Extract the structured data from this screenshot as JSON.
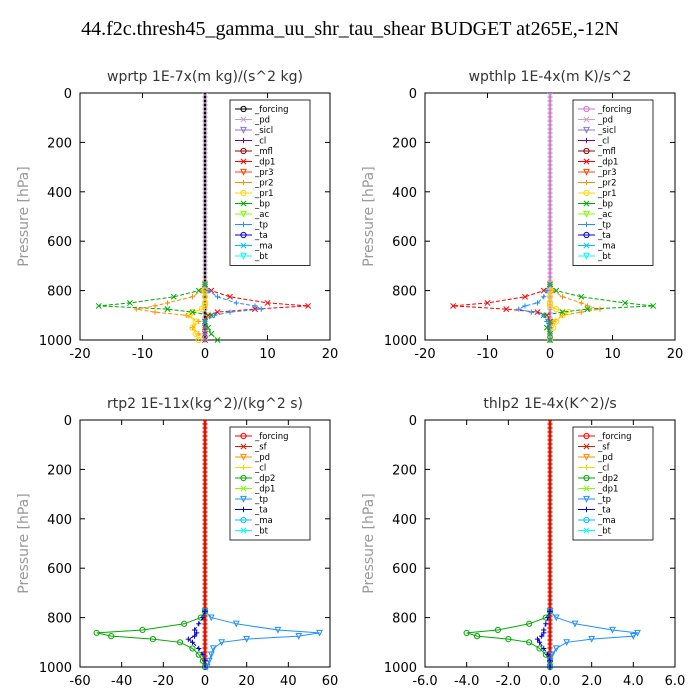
{
  "page": {
    "title": "44.f2c.thresh45_gamma_uu_shr_tau_shear  BUDGET at265E,-12N"
  },
  "chart_data": [
    {
      "type": "line",
      "title": "wprtp   1E-7x(m kg)/(s^2 kg)",
      "ylabel": "Pressure [hPa]",
      "xlabel": "",
      "xlim": [
        -20,
        20
      ],
      "ylim": [
        1000,
        0
      ],
      "xticks": [
        "-20",
        "-10",
        "0",
        "10",
        "20"
      ],
      "yticks": [
        "0",
        "200",
        "400",
        "600",
        "800",
        "1000"
      ],
      "y": [
        775,
        800,
        825,
        850,
        862,
        875,
        887,
        900,
        925,
        950,
        975,
        1000
      ],
      "legend": [
        "_forcing",
        "_pd",
        "_sicl",
        "_cl",
        "_mfl",
        "_dp1",
        "_pr3",
        "_pr2",
        "_pr1",
        "_bp",
        "_ac",
        "_tp",
        "_ta",
        "_ma",
        "_bt"
      ],
      "series": [
        {
          "name": "_forcing",
          "color": "#000000",
          "values": [
            0,
            0,
            0,
            0,
            0,
            0,
            0,
            0,
            0,
            0,
            0,
            0
          ]
        },
        {
          "name": "_pd",
          "color": "#c8a2c8",
          "values": [
            0,
            0,
            0,
            0,
            0,
            0,
            0,
            0,
            0,
            0,
            0,
            0
          ]
        },
        {
          "name": "_sicl",
          "color": "#9370db",
          "values": [
            0,
            0,
            0,
            0,
            0,
            0,
            0,
            0,
            0,
            0,
            0,
            0
          ]
        },
        {
          "name": "_cl",
          "color": "#800080",
          "values": [
            0,
            0,
            0,
            0,
            0,
            0,
            0,
            0,
            0,
            0,
            0,
            0
          ]
        },
        {
          "name": "_mfl",
          "color": "#8b0000",
          "values": [
            0,
            0,
            0,
            0,
            0,
            0,
            0,
            0,
            0,
            0,
            0,
            0
          ]
        },
        {
          "name": "_dp1",
          "color": "#ff0000",
          "values": [
            0,
            1,
            4,
            10,
            16.5,
            8,
            2,
            0.5,
            0,
            0,
            0,
            0
          ]
        },
        {
          "name": "_pr3",
          "color": "#ff4500",
          "values": [
            0,
            0,
            0,
            0,
            0,
            0,
            0,
            0,
            0,
            0,
            0,
            0
          ]
        },
        {
          "name": "_pr2",
          "color": "#ff8c00",
          "values": [
            0,
            -0.5,
            -2,
            -6,
            -8,
            -11,
            -8,
            -3,
            -1,
            -2,
            -1,
            0
          ]
        },
        {
          "name": "_pr1",
          "color": "#ffd700",
          "values": [
            0,
            0,
            0,
            0,
            0,
            -0.5,
            -2,
            -2.5,
            -1.5,
            -2,
            -1.5,
            -1
          ]
        },
        {
          "name": "_bp",
          "color": "#00aa00",
          "values": [
            0,
            -1,
            -5,
            -12,
            -17,
            -6,
            -2,
            1,
            0,
            0.5,
            1,
            2
          ]
        },
        {
          "name": "_ac",
          "color": "#7fff00",
          "values": [
            0,
            0,
            0,
            0,
            0,
            0,
            0,
            0,
            0,
            0,
            0,
            0
          ]
        },
        {
          "name": "_tp",
          "color": "#1e90ff",
          "values": [
            0,
            0.5,
            2,
            5,
            8,
            9,
            4,
            1.5,
            0,
            0,
            0,
            0
          ]
        },
        {
          "name": "_ta",
          "color": "#0000cd",
          "values": [
            0,
            0,
            0,
            0,
            0,
            0,
            0,
            0,
            0,
            0,
            0,
            0
          ]
        },
        {
          "name": "_ma",
          "color": "#00bfff",
          "values": [
            0,
            0,
            0,
            0,
            0,
            0,
            0,
            0,
            0,
            0,
            0,
            0
          ]
        },
        {
          "name": "_bt",
          "color": "#00ffff",
          "values": [
            0,
            0,
            0,
            0,
            0,
            0,
            0,
            0,
            0,
            0,
            0,
            0
          ]
        }
      ]
    },
    {
      "type": "line",
      "title": "wpthlp   1E-4x(m K)/s^2",
      "ylabel": "Pressure [hPa]",
      "xlabel": "",
      "xlim": [
        -20,
        20
      ],
      "ylim": [
        1000,
        0
      ],
      "xticks": [
        "-20",
        "-10",
        "0",
        "10",
        "20"
      ],
      "yticks": [
        "0",
        "200",
        "400",
        "600",
        "800",
        "1000"
      ],
      "y": [
        775,
        800,
        825,
        850,
        862,
        875,
        887,
        900,
        925,
        950,
        975,
        1000
      ],
      "legend": [
        "_forcing",
        "_pd",
        "_sicl",
        "_cl",
        "_mfl",
        "_dp1",
        "_pr3",
        "_pr2",
        "_pr1",
        "_bp",
        "_ac",
        "_tp",
        "_ta",
        "_ma",
        "_bt"
      ],
      "series": [
        {
          "name": "_forcing",
          "color": "#da70d6",
          "values": [
            0,
            0,
            0,
            0,
            0,
            0,
            0,
            0,
            0,
            0,
            0,
            0
          ]
        },
        {
          "name": "_pd",
          "color": "#c8a2c8",
          "values": [
            0,
            0,
            0,
            0,
            0,
            0,
            0,
            0,
            0,
            0,
            0,
            0
          ]
        },
        {
          "name": "_sicl",
          "color": "#9370db",
          "values": [
            0,
            0,
            0,
            0,
            0,
            0,
            0,
            0,
            0,
            0,
            0,
            0
          ]
        },
        {
          "name": "_cl",
          "color": "#800080",
          "values": [
            0,
            0,
            0,
            0,
            0,
            0,
            0,
            0,
            0,
            0,
            0,
            0
          ]
        },
        {
          "name": "_mfl",
          "color": "#8b0000",
          "values": [
            0,
            0,
            0,
            0,
            0,
            0,
            0,
            0,
            0,
            0,
            0,
            0
          ]
        },
        {
          "name": "_dp1",
          "color": "#ff0000",
          "values": [
            0,
            -1,
            -4,
            -10,
            -15.5,
            -7,
            -2,
            -0.5,
            0,
            0,
            0,
            0
          ]
        },
        {
          "name": "_pr3",
          "color": "#ff4500",
          "values": [
            0,
            0,
            0,
            0,
            0,
            0,
            0,
            0,
            0,
            0,
            0,
            0
          ]
        },
        {
          "name": "_pr2",
          "color": "#ff8c00",
          "values": [
            0,
            0.5,
            2,
            5,
            6,
            8,
            5,
            2,
            0.5,
            0,
            0,
            0
          ]
        },
        {
          "name": "_pr1",
          "color": "#ffd700",
          "values": [
            0,
            0,
            0,
            0,
            0,
            1,
            3,
            2,
            1,
            0.5,
            0,
            0
          ]
        },
        {
          "name": "_bp",
          "color": "#00aa00",
          "values": [
            0,
            1,
            5,
            12,
            16.5,
            6,
            2,
            -1,
            0,
            -0.5,
            0,
            0
          ]
        },
        {
          "name": "_ac",
          "color": "#7fff00",
          "values": [
            0,
            0,
            0,
            0,
            0,
            0,
            0,
            0,
            0,
            0,
            0,
            0
          ]
        },
        {
          "name": "_tp",
          "color": "#1e90ff",
          "values": [
            0,
            -0.5,
            -1,
            -2,
            -4,
            -5,
            -3,
            -1,
            -0.5,
            0,
            0,
            0
          ]
        },
        {
          "name": "_ta",
          "color": "#0000cd",
          "values": [
            0,
            0,
            0,
            0,
            0,
            0,
            0,
            0,
            0,
            0,
            0,
            0
          ]
        },
        {
          "name": "_ma",
          "color": "#00bfff",
          "values": [
            0,
            0,
            0,
            0,
            0,
            0,
            0,
            0,
            0,
            0,
            0,
            0
          ]
        },
        {
          "name": "_bt",
          "color": "#00ffff",
          "values": [
            0,
            0,
            0,
            0,
            0,
            0,
            0,
            0,
            0,
            0,
            0,
            0
          ]
        }
      ]
    },
    {
      "type": "line",
      "title": "rtp2   1E-11x(kg^2)/(kg^2 s)",
      "ylabel": "Pressure [hPa]",
      "xlabel": "",
      "xlim": [
        -60,
        60
      ],
      "ylim": [
        1000,
        0
      ],
      "xticks": [
        "-60",
        "-40",
        "-20",
        "0",
        "20",
        "40",
        "60"
      ],
      "yticks": [
        "0",
        "200",
        "400",
        "600",
        "800",
        "1000"
      ],
      "y": [
        775,
        800,
        825,
        850,
        862,
        875,
        887,
        900,
        925,
        950,
        975,
        1000
      ],
      "legend": [
        "_forcing",
        "_sf",
        "_pd",
        "_cl",
        "_dp2",
        "_dp1",
        "_tp",
        "_ta",
        "_ma",
        "_bt"
      ],
      "series": [
        {
          "name": "_forcing",
          "color": "#ff0000",
          "values": [
            0,
            0,
            0,
            0,
            0,
            0,
            0,
            0,
            0,
            0,
            0,
            0
          ]
        },
        {
          "name": "_sf",
          "color": "#cc2200",
          "values": [
            0,
            0,
            0,
            0,
            0,
            0,
            0,
            0,
            0,
            0,
            0,
            0
          ]
        },
        {
          "name": "_pd",
          "color": "#ff8c00",
          "values": [
            0,
            0,
            0,
            0,
            0,
            0,
            0,
            0,
            0,
            0,
            0,
            0
          ]
        },
        {
          "name": "_cl",
          "color": "#ffd700",
          "values": [
            0,
            0,
            0,
            0,
            0,
            0,
            0,
            0,
            0,
            0,
            0,
            0
          ]
        },
        {
          "name": "_dp2",
          "color": "#00aa00",
          "values": [
            0,
            -2,
            -10,
            -30,
            -52,
            -45,
            -25,
            -12,
            -6,
            -3,
            -1,
            0
          ]
        },
        {
          "name": "_dp1",
          "color": "#7fff00",
          "values": [
            0,
            0,
            0,
            0,
            0,
            0,
            0,
            0,
            0,
            0,
            0,
            0
          ]
        },
        {
          "name": "_tp",
          "color": "#1e90ff",
          "values": [
            0,
            3,
            15,
            35,
            55,
            45,
            20,
            8,
            4,
            3,
            2,
            1
          ]
        },
        {
          "name": "_ta",
          "color": "#0000cd",
          "values": [
            0,
            -1,
            -3,
            -5,
            -4,
            -5,
            -8,
            -6,
            -3,
            -1,
            0,
            0
          ]
        },
        {
          "name": "_ma",
          "color": "#00bfff",
          "values": [
            0,
            0,
            0,
            0,
            0,
            0,
            0,
            0,
            0,
            0,
            0,
            0
          ]
        },
        {
          "name": "_bt",
          "color": "#00ffff",
          "values": [
            0,
            0,
            0,
            0,
            0,
            0,
            0,
            0,
            0,
            0,
            0,
            0
          ]
        }
      ]
    },
    {
      "type": "line",
      "title": "thlp2   1E-4x(K^2)/s",
      "ylabel": "Pressure [hPa]",
      "xlabel": "",
      "xlim": [
        -6,
        6
      ],
      "ylim": [
        1000,
        0
      ],
      "xticks": [
        "-6.0",
        "-4.0",
        "-2.0",
        "0.0",
        "2.0",
        "4.0",
        "6.0"
      ],
      "yticks": [
        "0",
        "200",
        "400",
        "600",
        "800",
        "1000"
      ],
      "y": [
        775,
        800,
        825,
        850,
        862,
        875,
        887,
        900,
        925,
        950,
        975,
        1000
      ],
      "legend": [
        "_forcing",
        "_sf",
        "_pd",
        "_cl",
        "_dp2",
        "_dp1",
        "_tp",
        "_ta",
        "_ma",
        "_bt"
      ],
      "series": [
        {
          "name": "_forcing",
          "color": "#ff0000",
          "values": [
            0,
            0,
            0,
            0,
            0,
            0,
            0,
            0,
            0,
            0,
            0,
            0
          ]
        },
        {
          "name": "_sf",
          "color": "#cc2200",
          "values": [
            0,
            0,
            0,
            0,
            0,
            0,
            0,
            0,
            0,
            0,
            0,
            0
          ]
        },
        {
          "name": "_pd",
          "color": "#ff8c00",
          "values": [
            0,
            0,
            0,
            0,
            0,
            0,
            0,
            0,
            0,
            0,
            0,
            0
          ]
        },
        {
          "name": "_cl",
          "color": "#ffd700",
          "values": [
            0,
            0,
            0,
            0,
            0,
            0,
            0,
            0,
            0,
            0,
            0,
            0
          ]
        },
        {
          "name": "_dp2",
          "color": "#00aa00",
          "values": [
            0,
            -0.2,
            -1,
            -2.5,
            -4,
            -3.5,
            -2,
            -1,
            -0.5,
            -0.2,
            0,
            0
          ]
        },
        {
          "name": "_dp1",
          "color": "#7fff00",
          "values": [
            0,
            0,
            0,
            0,
            0,
            0,
            0,
            0,
            0,
            0,
            0,
            0
          ]
        },
        {
          "name": "_tp",
          "color": "#1e90ff",
          "values": [
            0,
            0.3,
            1.2,
            3,
            4.2,
            4,
            2,
            0.8,
            0.3,
            0.1,
            0,
            0
          ]
        },
        {
          "name": "_ta",
          "color": "#0000cd",
          "values": [
            0,
            -0.1,
            -0.2,
            -0.3,
            -0.3,
            -0.4,
            -0.6,
            -0.5,
            -0.3,
            -0.1,
            0,
            0
          ]
        },
        {
          "name": "_ma",
          "color": "#00bfff",
          "values": [
            0,
            0,
            0,
            0,
            0,
            0,
            0,
            0,
            0,
            0,
            0,
            0
          ]
        },
        {
          "name": "_bt",
          "color": "#00ffff",
          "values": [
            0,
            0,
            0,
            0,
            0,
            0,
            0,
            0,
            0,
            0,
            0,
            0
          ]
        }
      ]
    }
  ]
}
